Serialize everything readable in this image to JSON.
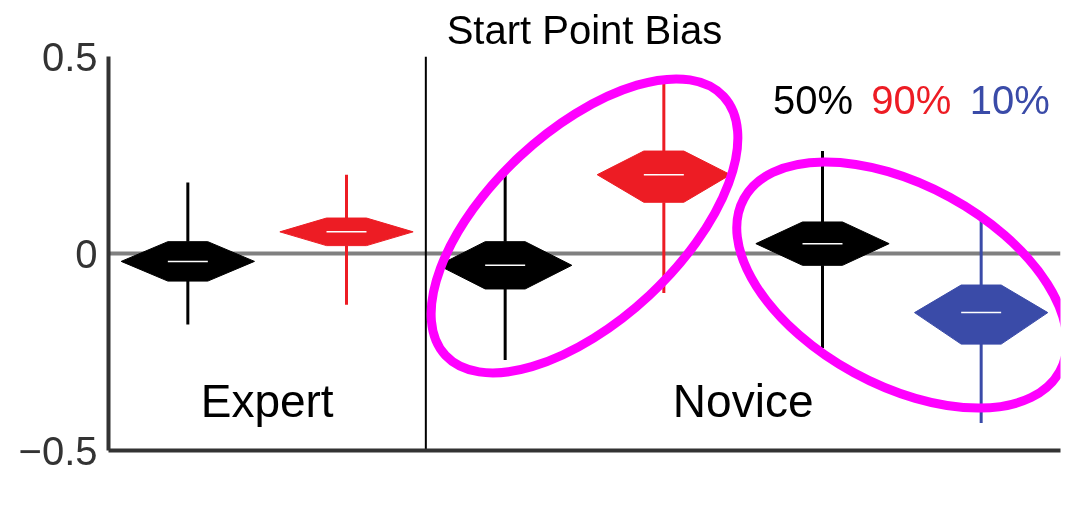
{
  "chart_data": {
    "type": "box",
    "title": "Start Point Bias",
    "categories": [
      null,
      null,
      null,
      null,
      null,
      null
    ],
    "series": [
      {
        "name": "50%",
        "color": "#000000",
        "boxes": [
          {
            "low": -0.18,
            "q1": -0.07,
            "median": -0.02,
            "q3": 0.03,
            "high": 0.18
          },
          null,
          {
            "low": -0.27,
            "q1": -0.09,
            "median": -0.03,
            "q3": 0.03,
            "high": 0.22
          },
          null,
          {
            "low": -0.24,
            "q1": -0.03,
            "median": 0.025,
            "q3": 0.08,
            "high": 0.26
          },
          null
        ]
      },
      {
        "name": "90%",
        "color": "#ed1c24",
        "boxes": [
          null,
          {
            "low": -0.13,
            "q1": 0.02,
            "median": 0.055,
            "q3": 0.09,
            "high": 0.2
          },
          null,
          {
            "low": -0.1,
            "q1": 0.13,
            "median": 0.2,
            "q3": 0.26,
            "high": 0.44
          },
          null,
          null
        ]
      },
      {
        "name": "10%",
        "color": "#3a4ba8",
        "boxes": [
          null,
          null,
          null,
          null,
          null,
          {
            "low": -0.43,
            "q1": -0.23,
            "median": -0.15,
            "q3": -0.08,
            "high": 0.09
          }
        ]
      }
    ],
    "ylim": [
      -0.5,
      0.5
    ],
    "yticks": [
      -0.5,
      0,
      0.5
    ],
    "tick_labels": "y",
    "grid": false,
    "ref_lines": [
      {
        "axis": "y",
        "value": 0,
        "color": "#808080"
      }
    ],
    "annotations": [
      "Expert",
      "Novice"
    ]
  }
}
